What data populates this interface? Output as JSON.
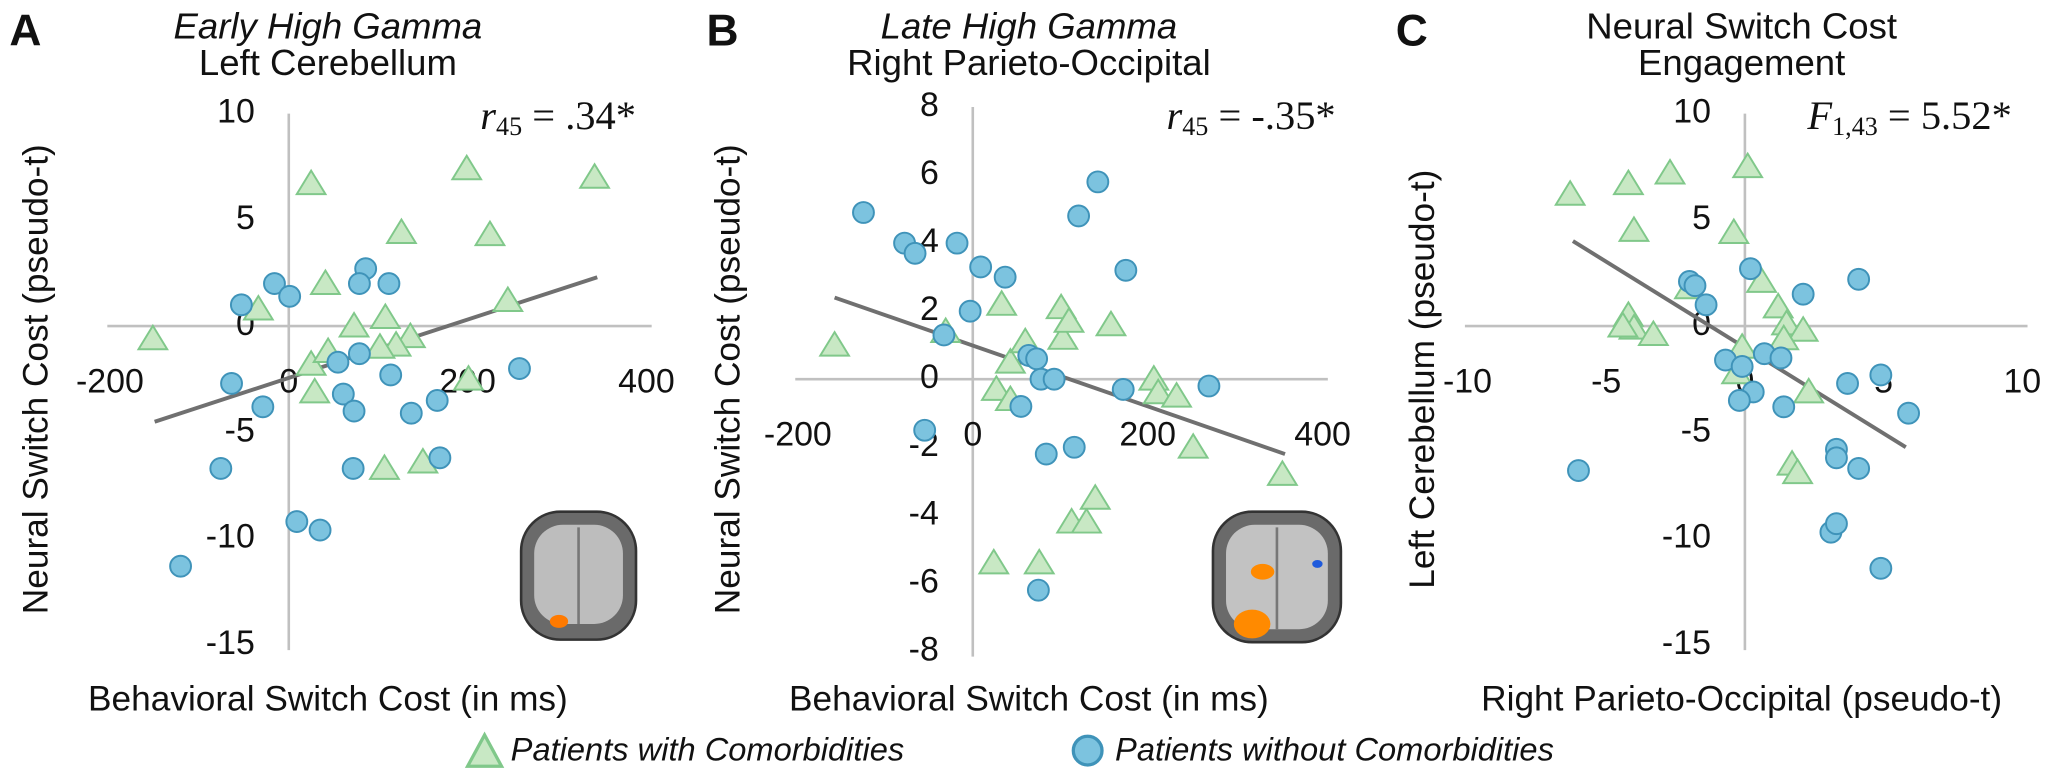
{
  "chart_data": [
    {
      "type": "scatter",
      "panel": "A",
      "title_lines": [
        "Early High Gamma",
        "Left Cerebellum"
      ],
      "italic_first_line": true,
      "xlabel": "Behavioral Switch Cost (in ms)",
      "ylabel": "Neural Switch Cost (pseudo-t)",
      "xlim": [
        -200,
        400
      ],
      "ylim": [
        -15,
        10
      ],
      "xticks": [
        -200,
        0,
        200,
        400
      ],
      "yticks": [
        -15,
        -10,
        -5,
        0,
        5,
        10
      ],
      "stat": {
        "symbol": "r",
        "sub": "45",
        "text": " = .34*"
      },
      "trend": {
        "x": [
          -150,
          345
        ],
        "y": [
          -4.5,
          2.3
        ],
        "color": "#707070"
      },
      "series": [
        {
          "name": "Patients with Comorbidities",
          "marker": "triangle",
          "color": "#c8e8c4",
          "edge": "#80c88a",
          "x": [
            -152,
            25,
            -34,
            41,
            126,
            199,
            225,
            245,
            342,
            73,
            108,
            136,
            120,
            25,
            44,
            29,
            107,
            150,
            201,
            102
          ],
          "y": [
            -0.6,
            6.7,
            0.8,
            2.0,
            4.4,
            7.4,
            4.3,
            1.2,
            7.0,
            0,
            0.4,
            -0.5,
            -0.9,
            -1.8,
            -1.2,
            -3.1,
            -6.7,
            -6.4,
            -2.5,
            -1.0
          ]
        },
        {
          "name": "Patients without Comorbidities",
          "marker": "circle",
          "color": "#7cc3df",
          "edge": "#3f93b9",
          "x": [
            -53,
            -16,
            1,
            86,
            79,
            112,
            79,
            55,
            114,
            61,
            73,
            137,
            166,
            258,
            -64,
            -29,
            -76,
            -121,
            9,
            35,
            72,
            169
          ],
          "y": [
            1.0,
            2.0,
            1.4,
            2.7,
            2.0,
            2.0,
            -1.3,
            -1.7,
            -2.3,
            -3.2,
            -4.0,
            -4.1,
            -3.5,
            -2.0,
            -2.7,
            -3.8,
            -6.7,
            -11.3,
            -9.2,
            -9.6,
            -6.7,
            -6.2
          ]
        }
      ]
    },
    {
      "type": "scatter",
      "panel": "B",
      "title_lines": [
        "Late High Gamma",
        "Right Parieto-Occipital"
      ],
      "italic_first_line": true,
      "xlabel": "Behavioral Switch Cost (in ms)",
      "ylabel": "Neural Switch Cost (pseudo-t)",
      "xlim": [
        -200,
        400
      ],
      "ylim": [
        -8,
        8
      ],
      "xticks": [
        -200,
        0,
        200,
        400
      ],
      "yticks": [
        -8,
        -6,
        -4,
        -2,
        0,
        2,
        4,
        6,
        8
      ],
      "stat": {
        "symbol": "r",
        "sub": "45",
        "text": " = -.35*"
      },
      "trend": {
        "x": [
          -158,
          357
        ],
        "y": [
          2.4,
          -2.2
        ],
        "color": "#707070"
      },
      "series": [
        {
          "marker": "triangle",
          "color": "#c8e8c4",
          "edge": "#80c88a",
          "x": [
            -158,
            -31,
            33,
            43,
            27,
            43,
            103,
            101,
            110,
            158,
            60,
            24,
            76,
            113,
            130,
            140,
            207,
            212,
            233,
            252,
            354
          ],
          "y": [
            1.0,
            1.4,
            2.2,
            0.5,
            -0.3,
            -0.6,
            1.2,
            2.1,
            1.7,
            1.6,
            1.1,
            -5.4,
            -5.4,
            -4.2,
            -4.2,
            -3.5,
            0,
            -0.4,
            -0.5,
            -2.0,
            -2.8
          ]
        },
        {
          "marker": "circle",
          "color": "#7cc3df",
          "edge": "#3f93b9",
          "x": [
            -125,
            -78,
            -66,
            -18,
            9,
            37,
            -3,
            -33,
            64,
            73,
            78,
            93,
            55,
            -55,
            84,
            116,
            121,
            143,
            175,
            172,
            270,
            75
          ],
          "y": [
            4.9,
            4.0,
            3.7,
            4.0,
            3.3,
            3.0,
            2.0,
            1.3,
            0.7,
            0.6,
            0,
            0,
            -0.8,
            -1.5,
            -2.2,
            -2.0,
            4.8,
            5.8,
            3.2,
            -0.3,
            -0.2,
            -6.2
          ]
        }
      ]
    },
    {
      "type": "scatter",
      "panel": "C",
      "title_lines": [
        "Neural Switch Cost",
        "Engagement"
      ],
      "italic_first_line": false,
      "xlabel": "Right Parieto-Occipital (pseudo-t)",
      "ylabel": "Left Cerebellum (pseudo-t)",
      "xlim": [
        -10,
        10
      ],
      "ylim": [
        -15,
        10
      ],
      "xticks": [
        -10,
        -5,
        0,
        5,
        10
      ],
      "yticks": [
        -15,
        -10,
        -5,
        0,
        5,
        10
      ],
      "stat": {
        "symbol": "F",
        "sub": "1,43",
        "text": " = 5.52*"
      },
      "trend": {
        "x": [
          -6.2,
          5.8
        ],
        "y": [
          4.0,
          -5.7
        ],
        "color": "#707070"
      },
      "series": [
        {
          "marker": "triangle",
          "color": "#c8e8c4",
          "edge": "#80c88a",
          "x": [
            -6.3,
            -4.2,
            -2.7,
            -4.0,
            0.1,
            -0.4,
            -4.2,
            -4.0,
            -3.3,
            -4.4,
            -2.0,
            0.6,
            1.2,
            1.5,
            2.1,
            1.4,
            -0.1,
            -0.3,
            1.7,
            1.9,
            2.3
          ],
          "y": [
            6.2,
            6.7,
            7.2,
            4.5,
            7.5,
            4.4,
            0.5,
            -0.1,
            -0.4,
            0,
            1.8,
            2.1,
            0.9,
            0.1,
            -0.2,
            -0.6,
            -1.0,
            -2.2,
            -6.5,
            -6.9,
            -3.1
          ]
        },
        {
          "marker": "circle",
          "color": "#7cc3df",
          "edge": "#3f93b9",
          "x": [
            -2.0,
            -1.8,
            -1.4,
            0.2,
            2.1,
            4.1,
            -0.7,
            -0.1,
            0.7,
            1.3,
            0.3,
            -0.2,
            1.4,
            3.7,
            4.9,
            5.9,
            3.3,
            3.3,
            4.1,
            3.1,
            3.3,
            4.9,
            -6.0
          ],
          "y": [
            2.1,
            1.9,
            1.0,
            2.7,
            1.5,
            2.2,
            -1.6,
            -1.9,
            -1.3,
            -1.5,
            -3.1,
            -3.5,
            -3.8,
            -2.7,
            -2.3,
            -4.1,
            -5.8,
            -6.2,
            -6.7,
            -9.7,
            -9.3,
            -11.4,
            -6.8
          ]
        }
      ]
    }
  ]
}
